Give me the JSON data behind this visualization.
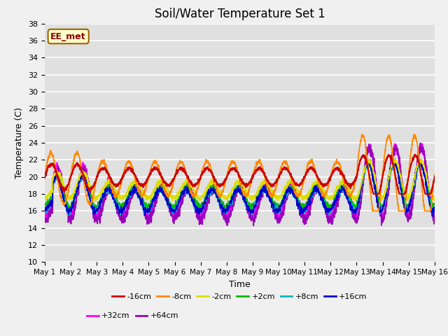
{
  "title": "Soil/Water Temperature Set 1",
  "xlabel": "Time",
  "ylabel": "Temperature (C)",
  "ylim": [
    10,
    38
  ],
  "yticks": [
    10,
    12,
    14,
    16,
    18,
    20,
    22,
    24,
    26,
    28,
    30,
    32,
    34,
    36,
    38
  ],
  "annotation": "EE_met",
  "bg_color": "#e0e0e0",
  "fig_color": "#f0f0f0",
  "series": [
    {
      "label": "-16cm",
      "color": "#cc0000",
      "lw": 1.5,
      "zorder": 5
    },
    {
      "label": "-8cm",
      "color": "#ff8800",
      "lw": 1.3,
      "zorder": 4
    },
    {
      "label": "-2cm",
      "color": "#dddd00",
      "lw": 1.3,
      "zorder": 3
    },
    {
      "label": "+2cm",
      "color": "#00bb00",
      "lw": 1.2,
      "zorder": 2
    },
    {
      "label": "+8cm",
      "color": "#00bbbb",
      "lw": 1.2,
      "zorder": 2
    },
    {
      "label": "+16cm",
      "color": "#0000cc",
      "lw": 1.2,
      "zorder": 2
    },
    {
      "label": "+32cm",
      "color": "#ff00ff",
      "lw": 1.4,
      "zorder": 1
    },
    {
      "label": "+64cm",
      "color": "#9900bb",
      "lw": 1.4,
      "zorder": 1
    }
  ],
  "num_days": 15,
  "ppd": 144,
  "xtick_days": [
    1,
    2,
    3,
    4,
    5,
    6,
    7,
    8,
    9,
    10,
    11,
    12,
    13,
    14,
    15,
    16
  ]
}
